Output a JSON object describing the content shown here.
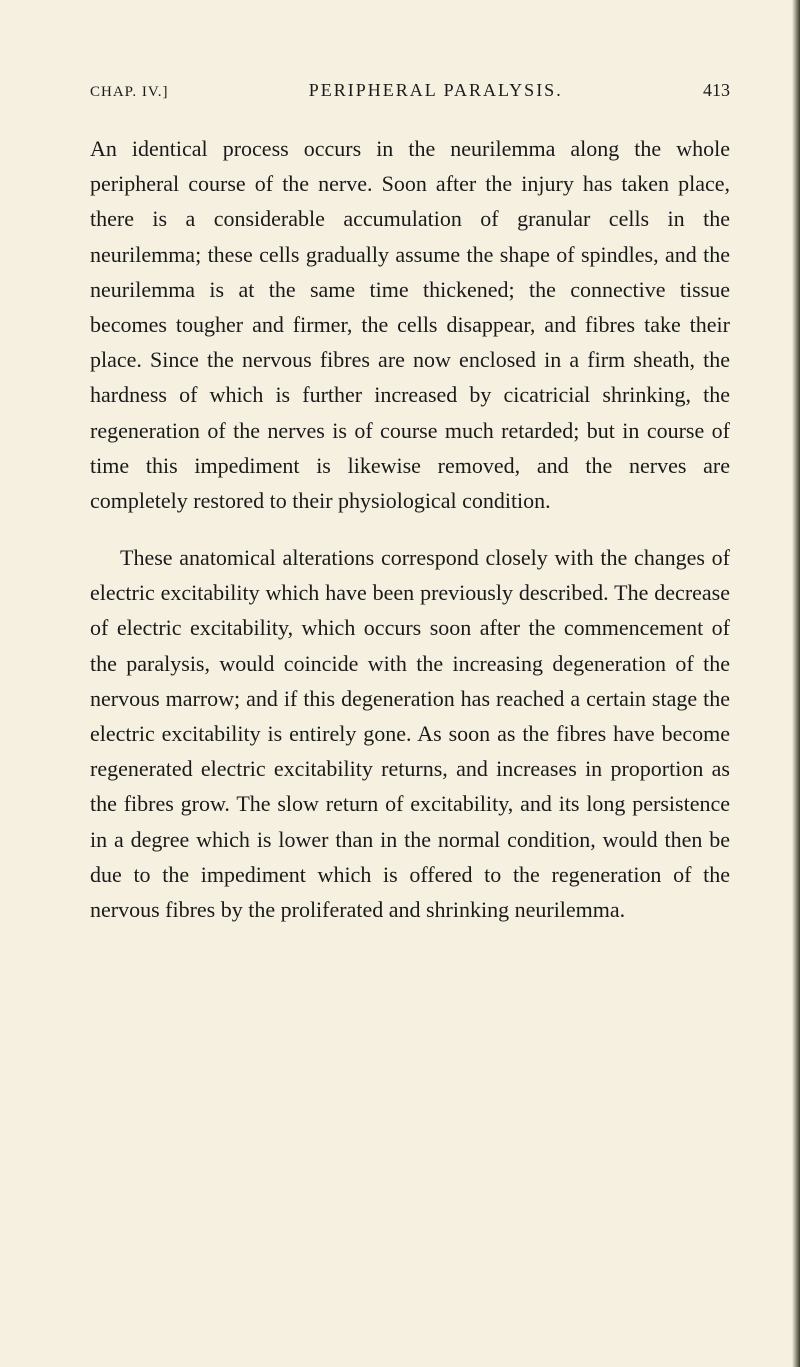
{
  "page": {
    "colors": {
      "page_bg": "#f5f0e0",
      "outer_bg": "#2a2a2a",
      "text": "#1a1a1a"
    },
    "typography": {
      "body_font_size": 22,
      "header_font_size": 18,
      "line_height": 1.6,
      "font_family": "Georgia, serif"
    },
    "header": {
      "chapter": "CHAP. IV.]",
      "title": "PERIPHERAL PARALYSIS.",
      "page_number": "413"
    },
    "paragraphs": [
      "An identical process occurs in the neurilemma along the whole peripheral course of the nerve. Soon after the injury has taken place, there is a considerable accumulation of granular cells in the neurilemma; these cells gradually assume the shape of spindles, and the neurilemma is at the same time thickened; the connective tissue becomes tougher and firmer, the cells disappear, and fibres take their place. Since the nervous fibres are now enclosed in a firm sheath, the hardness of which is further increased by cicatricial shrinking, the regeneration of the nerves is of course much retarded; but in course of time this impediment is likewise removed, and the nerves are completely restored to their physiological condition.",
      "These anatomical alterations correspond closely with the changes of electric excitability which have been previously described. The decrease of electric excitability, which occurs soon after the commencement of the paralysis, would coincide with the increasing degeneration of the nervous marrow; and if this degeneration has reached a certain stage the electric excitability is entirely gone. As soon as the fibres have become regenerated electric excitability returns, and increases in proportion as the fibres grow. The slow return of excitability, and its long persistence in a degree which is lower than in the normal condition, would then be due to the impediment which is offered to the regeneration of the nervous fibres by the proliferated and shrinking neurilemma."
    ]
  }
}
